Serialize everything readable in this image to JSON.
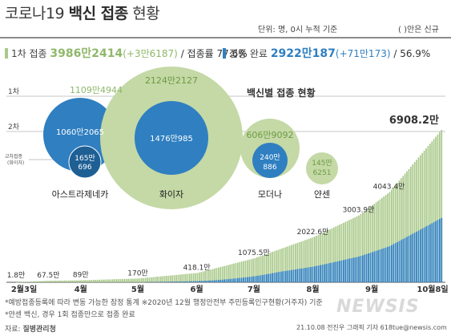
{
  "header": {
    "title_prefix": "코로나19 ",
    "title_bold": "백신 접종",
    "title_suffix": " 현황",
    "unit_note": "단위: 명, 0시 누적 기준",
    "new_note": "( )안은 신규"
  },
  "summary": {
    "first_label": "1차 접종",
    "first_value": "3986만2414",
    "first_new": "(+3만6187)",
    "first_rate": "/ 접종률 77.6%",
    "full_label": "접종 완료",
    "full_value": "2922만187",
    "full_new": "(+71만173)",
    "full_rate": "/ 56.9%"
  },
  "legend": {
    "dose1": "1차",
    "dose2": "2차",
    "cross_line1": "교차접종",
    "cross_line2": "(화이자)"
  },
  "vaccine_chart": {
    "title": "백신별 접종 현황",
    "vaccines": [
      {
        "name": "아스트라제네카",
        "dose1": "1109만4944",
        "dose2": "1060만2065",
        "cross1": "165만",
        "cross2": "696"
      },
      {
        "name": "화이자",
        "dose1": "2124만2127",
        "dose2": "1476만985"
      },
      {
        "name": "모더나",
        "dose1": "606만9092",
        "dose2_line1": "240만",
        "dose2_line2": "886"
      },
      {
        "name": "얀센",
        "dose1_line1": "145만",
        "dose1_line2": "6251"
      }
    ]
  },
  "chart_data": {
    "type": "bar",
    "title": "",
    "series": [
      {
        "name": "1차 접종",
        "color": "#a9c98a"
      },
      {
        "name": "접종 완료",
        "color": "#2f7fc1"
      }
    ],
    "x_ticks": [
      "2월3일",
      "4월",
      "5월",
      "6월",
      "7월",
      "8월",
      "9월",
      "10월8일"
    ],
    "value_labels": [
      "1.8만",
      "67.5만",
      "89만",
      "170만",
      "418.1만",
      "1075.5만",
      "2022.6만",
      "3003.9만",
      "4043.4만",
      "6908.2만"
    ],
    "points": [
      {
        "date": "2021-02-26",
        "value": 1.8
      },
      {
        "date": "2021-03-15",
        "value": 67.5
      },
      {
        "date": "2021-04-01",
        "value": 89
      },
      {
        "date": "2021-05-01",
        "value": 170
      },
      {
        "date": "2021-06-01",
        "value": 418.1
      },
      {
        "date": "2021-07-01",
        "value": 1075.5
      },
      {
        "date": "2021-08-01",
        "value": 2022.6
      },
      {
        "date": "2021-08-25",
        "value": 3003.9
      },
      {
        "date": "2021-09-10",
        "value": 4043.4
      },
      {
        "date": "2021-10-08",
        "value": 6908.2
      }
    ],
    "completed_fraction_anchors": [
      {
        "date": "2021-02-26",
        "fraction": 0.0
      },
      {
        "date": "2021-04-20",
        "fraction": 0.02
      },
      {
        "date": "2021-06-10",
        "fraction": 0.15
      },
      {
        "date": "2021-07-15",
        "fraction": 0.32
      },
      {
        "date": "2021-08-20",
        "fraction": 0.38
      },
      {
        "date": "2021-09-20",
        "fraction": 0.41
      },
      {
        "date": "2021-10-08",
        "fraction": 0.423
      }
    ],
    "y_unit": "만"
  },
  "footer": {
    "note1": "*예방접종등록에 따라 변동 가능한 잠정 통계  ※2020년 12월 행정안전부 주민등록인구현황(거주자) 기준",
    "note2": "*얀센 백신, 경우 1회 접종만으로 접종 완료",
    "source_label": "자료:",
    "source_org": "질병관리청",
    "credit": "21.10.08 전진우 그래픽 기자 618tue@newsis.com",
    "logo": "NEWSIS"
  }
}
